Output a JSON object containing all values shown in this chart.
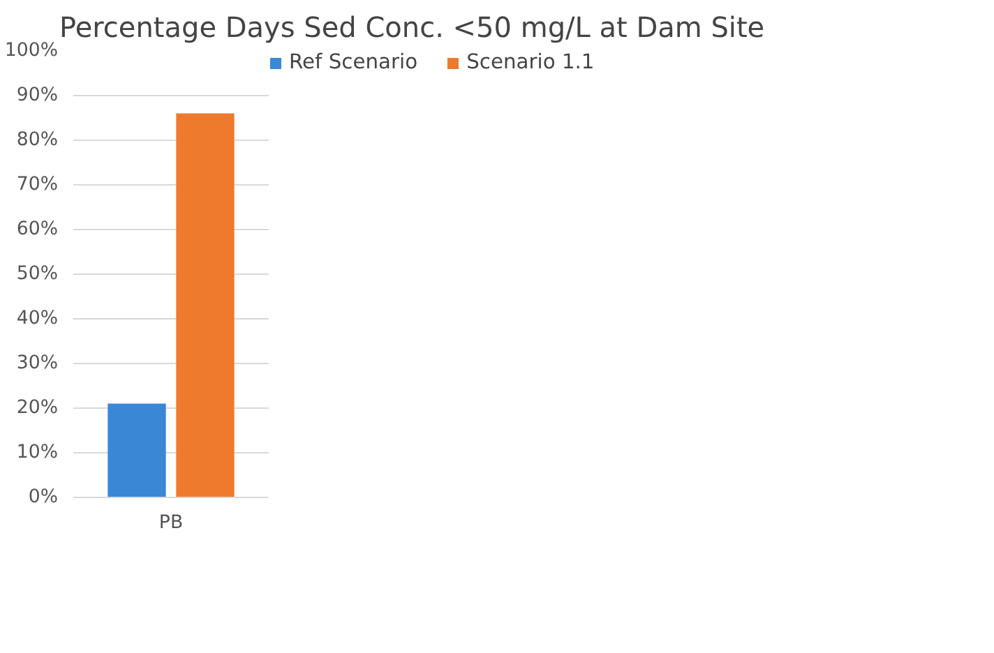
{
  "chart_data": {
    "type": "bar",
    "title": "Percentage Days Sed Conc. <50 mg/L at Dam Site",
    "categories": [
      "PB"
    ],
    "series": [
      {
        "name": "Ref Scenario",
        "color": "#3a87d6",
        "values": [
          21
        ]
      },
      {
        "name": "Scenario 1.1",
        "color": "#ee7a2e",
        "values": [
          86
        ]
      }
    ],
    "ylim": [
      0,
      100
    ],
    "yticks": [
      {
        "value": 0,
        "label": "0%"
      },
      {
        "value": 10,
        "label": "10%"
      },
      {
        "value": 20,
        "label": "20%"
      },
      {
        "value": 30,
        "label": "30%"
      },
      {
        "value": 40,
        "label": "40%"
      },
      {
        "value": 50,
        "label": "50%"
      },
      {
        "value": 60,
        "label": "60%"
      },
      {
        "value": 70,
        "label": "70%"
      },
      {
        "value": 80,
        "label": "80%"
      },
      {
        "value": 90,
        "label": "90%"
      },
      {
        "value": 100,
        "label": "100%"
      }
    ],
    "grid": "y",
    "legend": "top"
  }
}
